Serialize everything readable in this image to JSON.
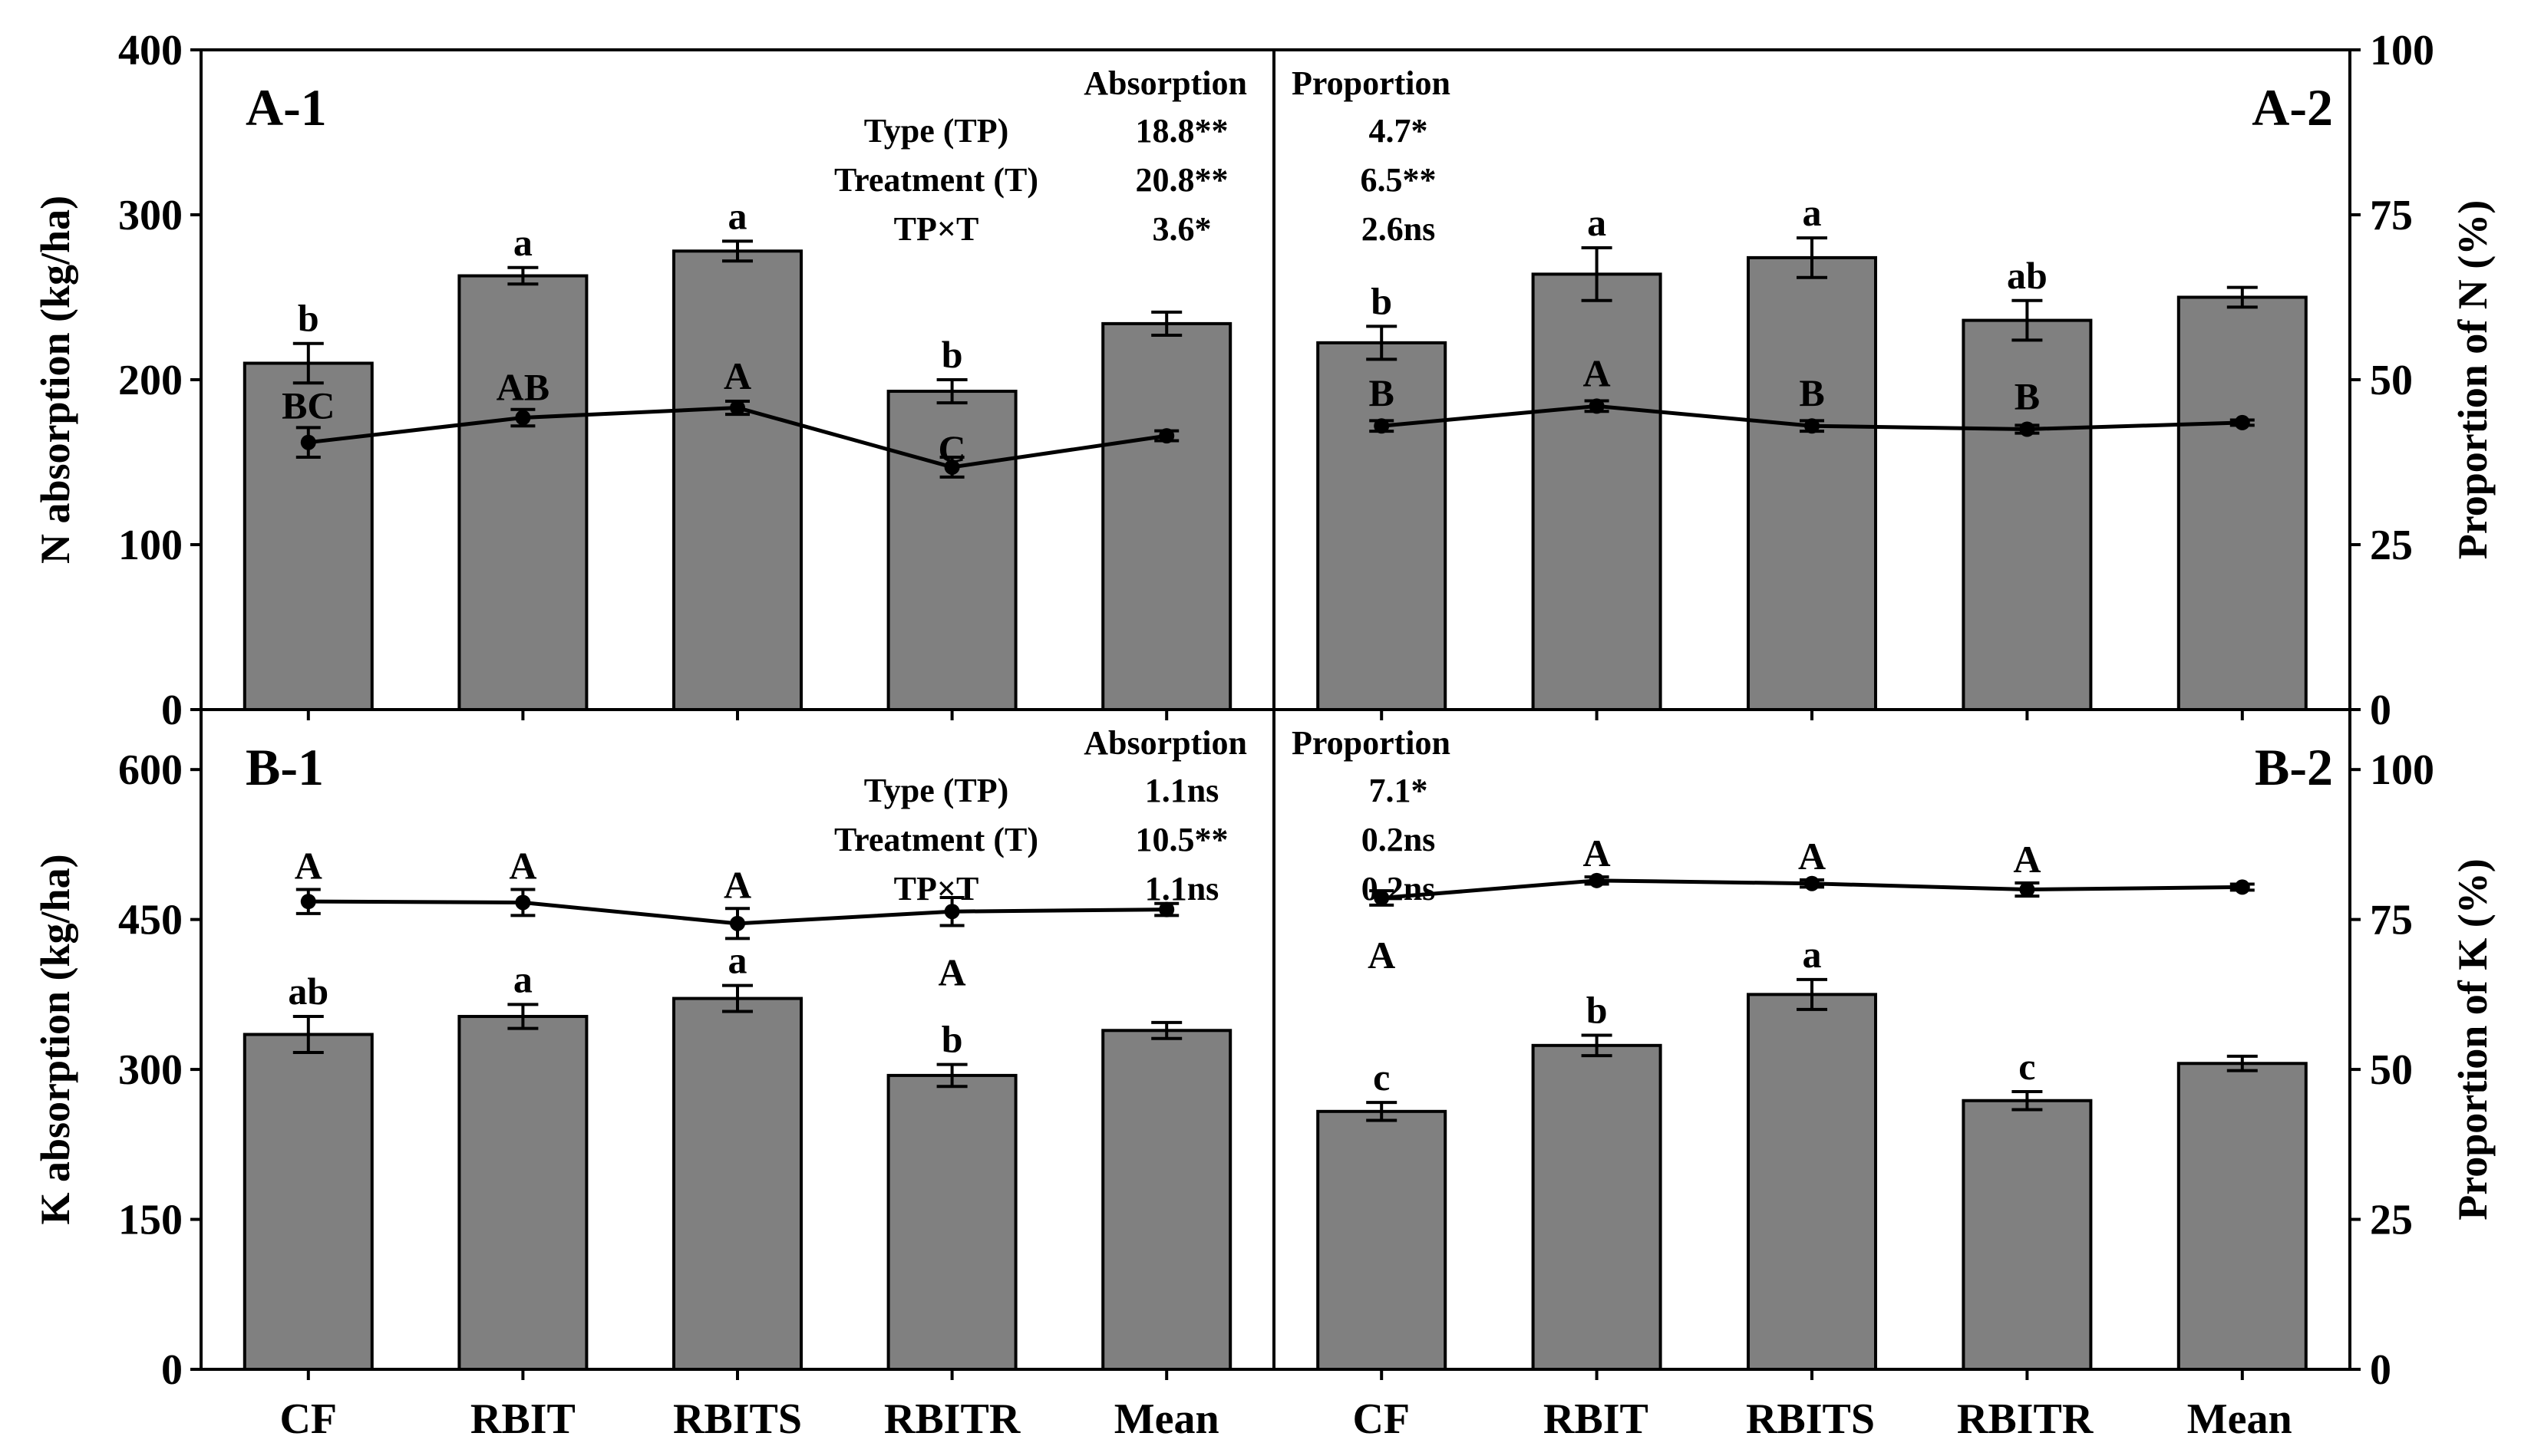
{
  "categories": [
    "CF",
    "RBIT",
    "RBITS",
    "RBITR",
    "Mean"
  ],
  "stats_rows": [
    "Type (TP)",
    "Treatment (T)",
    "TP×T"
  ],
  "chart_data": [
    {
      "id": "A-1",
      "type": "bar+line",
      "label": "A-1",
      "ylabel": "N absorption (kg/ha)",
      "ylim": [
        0,
        400
      ],
      "yticks": [
        0,
        100,
        200,
        300,
        400
      ],
      "bars": {
        "values": [
          210,
          263,
          278,
          193,
          234
        ],
        "errors": [
          12,
          5,
          6,
          7,
          7
        ],
        "letters": [
          "b",
          "a",
          "a",
          "b",
          ""
        ]
      },
      "line": {
        "values": [
          162,
          177,
          183,
          147,
          166
        ],
        "errors": [
          9,
          5,
          4,
          6,
          3
        ],
        "letters": [
          "BC",
          "AB",
          "A",
          "C",
          ""
        ]
      },
      "stats": {
        "header": "Absorption",
        "values": [
          "18.8**",
          "20.8**",
          "3.6*"
        ]
      }
    },
    {
      "id": "A-2",
      "type": "bar+line",
      "label": "A-2",
      "ylabel": "Proportion of N (%)",
      "ylim": [
        0,
        100
      ],
      "yticks": [
        0,
        25,
        50,
        75,
        100
      ],
      "bars": {
        "values": [
          55.6,
          66.0,
          68.5,
          59.0,
          62.5
        ],
        "errors": [
          2.5,
          4.0,
          3.0,
          3.0,
          1.5
        ],
        "letters": [
          "b",
          "a",
          "a",
          "ab",
          ""
        ]
      },
      "line": {
        "values": [
          43.0,
          46.0,
          43.0,
          42.5,
          43.5
        ],
        "errors": [
          0.8,
          0.8,
          0.8,
          0.6,
          0.4
        ],
        "letters": [
          "B",
          "A",
          "B",
          "B",
          ""
        ]
      },
      "stats": {
        "header": "Proportion",
        "values": [
          "4.7*",
          "6.5**",
          "2.6ns"
        ]
      }
    },
    {
      "id": "B-1",
      "type": "bar+line",
      "label": "B-1",
      "ylabel": "K absorption (kg/ha)",
      "ylim": [
        0,
        660
      ],
      "yticks": [
        0,
        150,
        300,
        450,
        600
      ],
      "bars": {
        "values": [
          335,
          353,
          371,
          294,
          339
        ],
        "errors": [
          18,
          12,
          13,
          11,
          8
        ],
        "letters": [
          "ab",
          "a",
          "a",
          "b",
          ""
        ]
      },
      "line": {
        "values": [
          468,
          467,
          446,
          458,
          460
        ],
        "errors": [
          12,
          13,
          15,
          14,
          6
        ],
        "letters": [
          "A",
          "A",
          "A",
          "A",
          ""
        ]
      },
      "stats": {
        "header": "Absorption",
        "values": [
          "1.1ns",
          "10.5**",
          "1.1ns"
        ]
      }
    },
    {
      "id": "B-2",
      "type": "bar+line",
      "label": "B-2",
      "ylabel": "Proportion of K (%)",
      "ylim": [
        0,
        110
      ],
      "yticks": [
        0,
        25,
        50,
        75,
        100
      ],
      "bars": {
        "values": [
          43.0,
          54.0,
          62.5,
          44.8,
          51.0
        ],
        "errors": [
          1.5,
          1.7,
          2.5,
          1.5,
          1.2
        ],
        "letters": [
          "c",
          "b",
          "a",
          "c",
          ""
        ]
      },
      "line": {
        "values": [
          78.6,
          81.5,
          81.0,
          80.0,
          80.4
        ],
        "errors": [
          1.2,
          0.6,
          0.6,
          1.1,
          0.5
        ],
        "letters": [
          "A",
          "A",
          "A",
          "A",
          ""
        ]
      },
      "stats": {
        "header": "Proportion",
        "values": [
          "7.1*",
          "0.2ns",
          "0.2ns"
        ]
      }
    }
  ]
}
